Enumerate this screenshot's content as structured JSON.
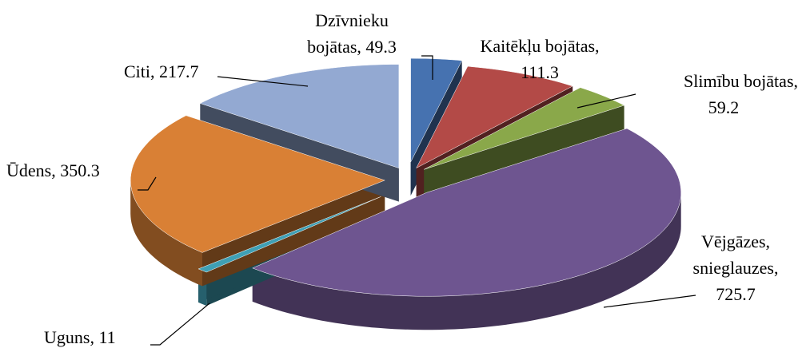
{
  "chart_data": {
    "type": "pie",
    "three_d": true,
    "values": [
      49.3,
      111.3,
      59.2,
      725.7,
      11,
      350.3,
      217.7
    ],
    "value_labels": [
      [
        "Dzīvnieku",
        "bojātas, 49.3"
      ],
      [
        "Kaitēkļu bojātas,",
        "111.3"
      ],
      [
        "Slimību bojātas,",
        "59.2"
      ],
      [
        "Vējgāzes,",
        "snieglauzes,",
        "725.7"
      ],
      [
        "Uguns, 11"
      ],
      [
        "Ūdens, 350.3"
      ],
      [
        "Citi, 217.7"
      ]
    ],
    "colors": [
      "#4672b0",
      "#b34a47",
      "#8aa84a",
      "#6e5590",
      "#3fa0b5",
      "#d98035",
      "#93a9d2"
    ]
  }
}
